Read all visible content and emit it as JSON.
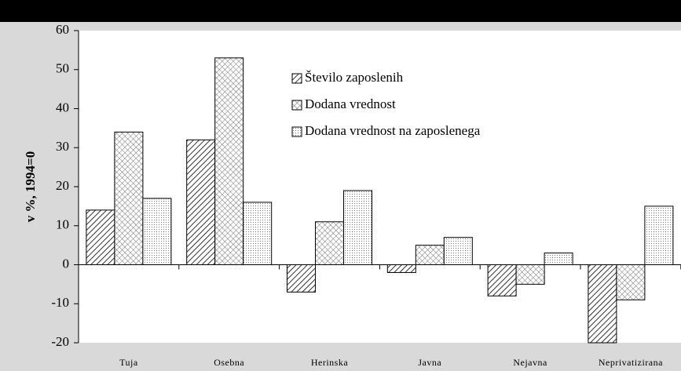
{
  "chart_data": {
    "type": "bar",
    "ylabel": "v %, 1994=0",
    "categories": [
      "Tuja",
      "Osebna",
      "Herinska",
      "Javna",
      "Nejavna",
      "Neprivatizirana"
    ],
    "series": [
      {
        "name": "Število zaposlenih",
        "color": "#000000",
        "pattern": "diagonal",
        "values": [
          14,
          32,
          -7,
          -2,
          -8,
          -20
        ]
      },
      {
        "name": "Dodana vrednost",
        "color": "#000000",
        "pattern": "crosshatch",
        "values": [
          34,
          53,
          11,
          5,
          -5,
          -9
        ]
      },
      {
        "name": "Dodana vrednost na zaposlenega",
        "color": "#000000",
        "pattern": "dots",
        "values": [
          17,
          16,
          19,
          7,
          3,
          15
        ]
      }
    ],
    "ylim": [
      -20,
      60
    ],
    "yticks": [
      -20,
      -10,
      0,
      10,
      20,
      30,
      40,
      50,
      60
    ],
    "grid": false,
    "legend": "top"
  }
}
